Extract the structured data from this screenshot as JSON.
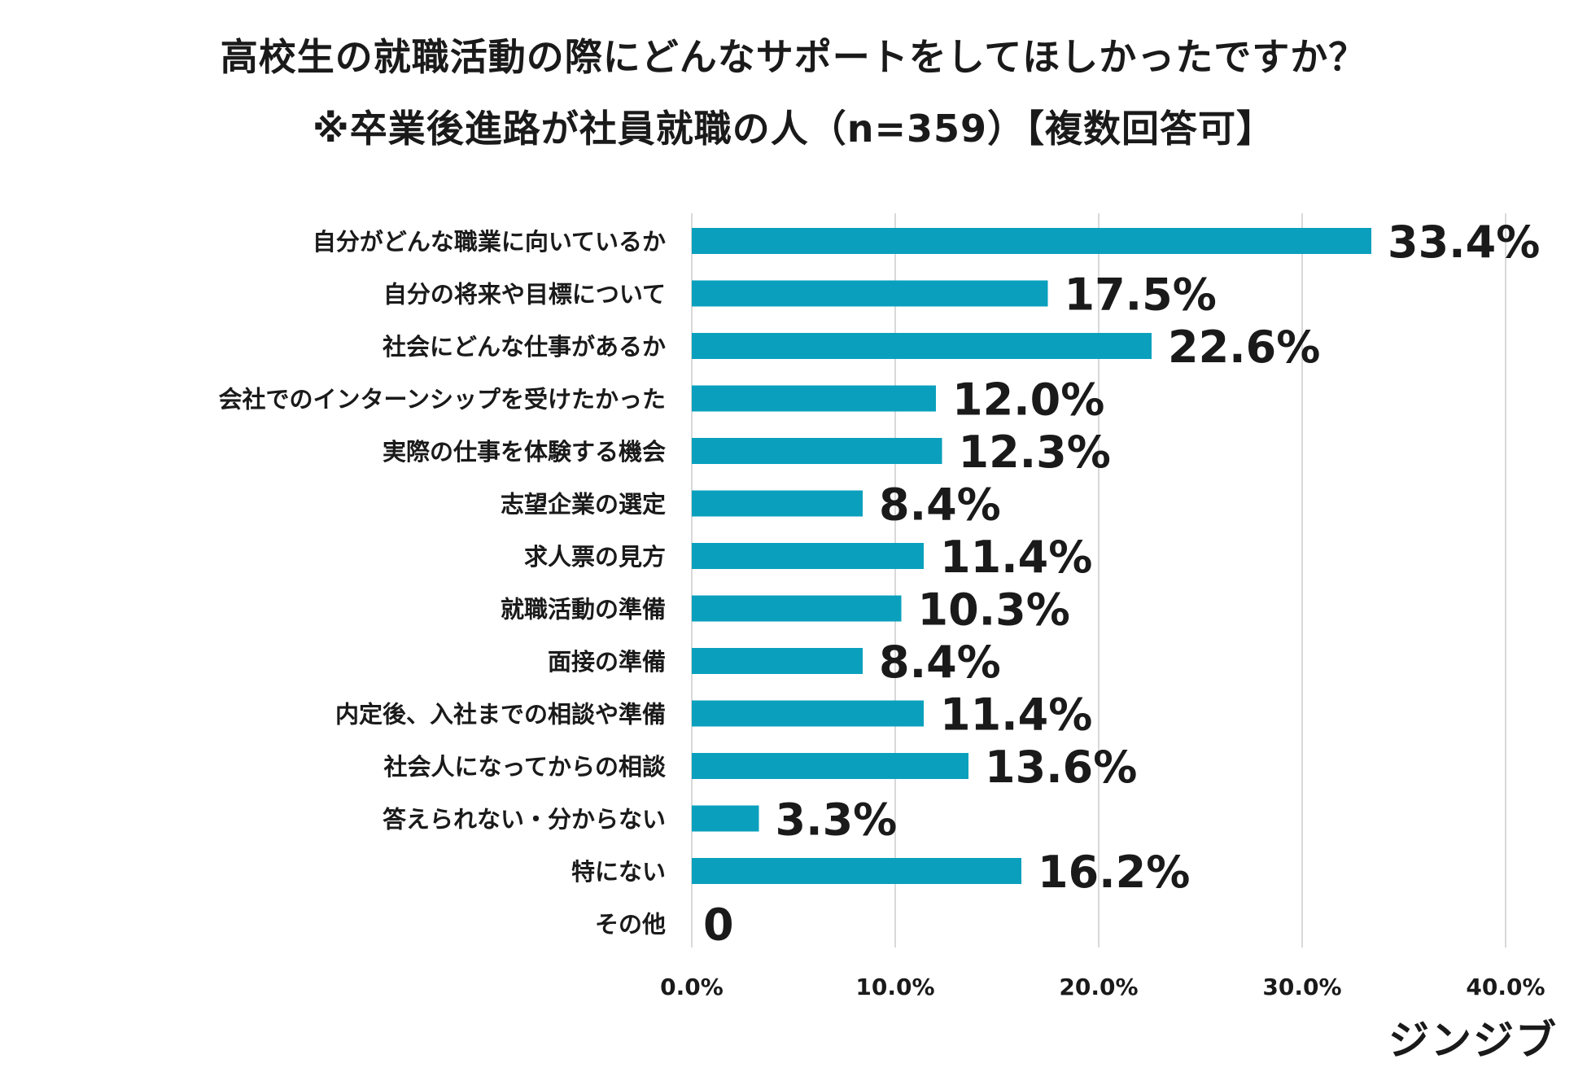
{
  "title": {
    "line1": "高校生の就職活動の際にどんなサポートをしてほしかったですか？",
    "line2": "※卒業後進路が社員就職の人（n=359）【複数回答可】"
  },
  "brand": "ジンジブ",
  "colors": {
    "bar": "#0aa0bd",
    "grid": "#d9d9d9",
    "text": "#1a1a1a"
  },
  "chart_data": {
    "type": "bar",
    "orientation": "horizontal",
    "title": "高校生の就職活動の際にどんなサポートをしてほしかったですか？",
    "subtitle": "※卒業後進路が社員就職の人（n=359）【複数回答可】",
    "xlabel": "",
    "ylabel": "",
    "xlim": [
      0,
      40
    ],
    "grid": true,
    "legend": "none",
    "x_ticks": [
      {
        "value": 0,
        "label": "0.0%"
      },
      {
        "value": 10,
        "label": "10.0%"
      },
      {
        "value": 20,
        "label": "20.0%"
      },
      {
        "value": 30,
        "label": "30.0%"
      },
      {
        "value": 40,
        "label": "40.0%"
      }
    ],
    "categories": [
      "自分がどんな職業に向いているか",
      "自分の将来や目標について",
      "社会にどんな仕事があるか",
      "会社でのインターンシップを受けたかった",
      "実際の仕事を体験する機会",
      "志望企業の選定",
      "求人票の見方",
      "就職活動の準備",
      "面接の準備",
      "内定後、入社までの相談や準備",
      "社会人になってからの相談",
      "答えられない・分からない",
      "特にない",
      "その他"
    ],
    "values": [
      33.4,
      17.5,
      22.6,
      12.0,
      12.3,
      8.4,
      11.4,
      10.3,
      8.4,
      11.4,
      13.6,
      3.3,
      16.2,
      0
    ],
    "data_labels": [
      "33.4%",
      "17.5%",
      "22.6%",
      "12.0%",
      "12.3%",
      "8.4%",
      "11.4%",
      "10.3%",
      "8.4%",
      "11.4%",
      "13.6%",
      "3.3%",
      "16.2%",
      "0"
    ]
  }
}
